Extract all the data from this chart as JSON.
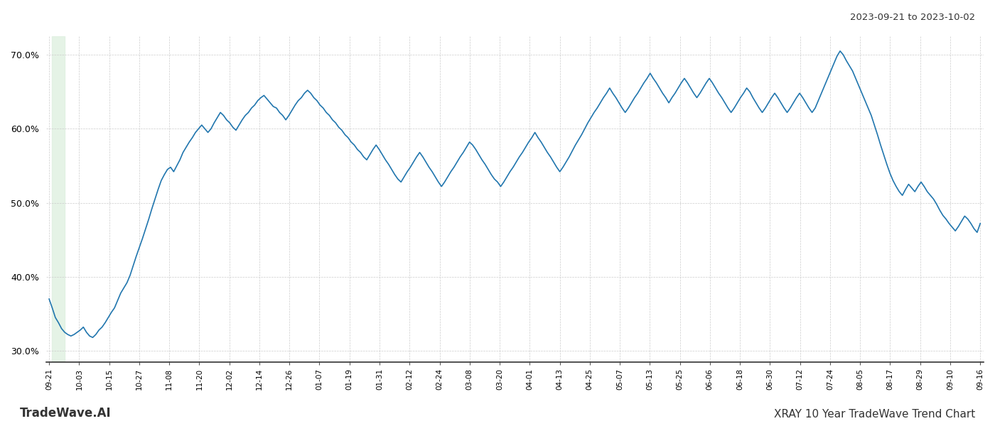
{
  "title_top_right": "2023-09-21 to 2023-10-02",
  "title_bottom_left": "TradeWave.AI",
  "title_bottom_right": "XRAY 10 Year TradeWave Trend Chart",
  "line_color": "#2176ae",
  "line_width": 1.2,
  "background_color": "#ffffff",
  "grid_color": "#cccccc",
  "highlight_color": "#dff0e0",
  "ylim": [
    0.285,
    0.725
  ],
  "yticks": [
    0.3,
    0.4,
    0.5,
    0.6,
    0.7
  ],
  "xlabels": [
    "09-21",
    "10-03",
    "10-15",
    "10-27",
    "11-08",
    "11-20",
    "12-02",
    "12-14",
    "12-26",
    "01-07",
    "01-19",
    "01-31",
    "02-12",
    "02-24",
    "03-08",
    "03-20",
    "04-01",
    "04-13",
    "04-25",
    "05-07",
    "05-13",
    "05-25",
    "06-06",
    "06-18",
    "06-30",
    "07-12",
    "07-24",
    "08-05",
    "08-17",
    "08-29",
    "09-10",
    "09-16"
  ],
  "values": [
    0.37,
    0.358,
    0.345,
    0.338,
    0.33,
    0.325,
    0.322,
    0.32,
    0.322,
    0.325,
    0.328,
    0.332,
    0.325,
    0.32,
    0.318,
    0.322,
    0.328,
    0.332,
    0.338,
    0.345,
    0.352,
    0.358,
    0.368,
    0.378,
    0.385,
    0.392,
    0.402,
    0.415,
    0.428,
    0.44,
    0.452,
    0.465,
    0.478,
    0.492,
    0.505,
    0.518,
    0.53,
    0.538,
    0.545,
    0.548,
    0.542,
    0.55,
    0.558,
    0.568,
    0.575,
    0.582,
    0.588,
    0.595,
    0.6,
    0.605,
    0.6,
    0.595,
    0.6,
    0.608,
    0.615,
    0.622,
    0.618,
    0.612,
    0.608,
    0.602,
    0.598,
    0.605,
    0.612,
    0.618,
    0.622,
    0.628,
    0.632,
    0.638,
    0.642,
    0.645,
    0.64,
    0.635,
    0.63,
    0.628,
    0.622,
    0.618,
    0.612,
    0.618,
    0.625,
    0.632,
    0.638,
    0.642,
    0.648,
    0.652,
    0.648,
    0.642,
    0.638,
    0.632,
    0.628,
    0.622,
    0.618,
    0.612,
    0.608,
    0.602,
    0.598,
    0.592,
    0.588,
    0.582,
    0.578,
    0.572,
    0.568,
    0.562,
    0.558,
    0.565,
    0.572,
    0.578,
    0.572,
    0.565,
    0.558,
    0.552,
    0.545,
    0.538,
    0.532,
    0.528,
    0.535,
    0.542,
    0.548,
    0.555,
    0.562,
    0.568,
    0.562,
    0.555,
    0.548,
    0.542,
    0.535,
    0.528,
    0.522,
    0.528,
    0.535,
    0.542,
    0.548,
    0.555,
    0.562,
    0.568,
    0.575,
    0.582,
    0.578,
    0.572,
    0.565,
    0.558,
    0.552,
    0.545,
    0.538,
    0.532,
    0.528,
    0.522,
    0.528,
    0.535,
    0.542,
    0.548,
    0.555,
    0.562,
    0.568,
    0.575,
    0.582,
    0.588,
    0.595,
    0.588,
    0.582,
    0.575,
    0.568,
    0.562,
    0.555,
    0.548,
    0.542,
    0.548,
    0.555,
    0.562,
    0.57,
    0.578,
    0.585,
    0.592,
    0.6,
    0.608,
    0.615,
    0.622,
    0.628,
    0.635,
    0.642,
    0.648,
    0.655,
    0.648,
    0.642,
    0.635,
    0.628,
    0.622,
    0.628,
    0.635,
    0.642,
    0.648,
    0.655,
    0.662,
    0.668,
    0.675,
    0.668,
    0.662,
    0.655,
    0.648,
    0.642,
    0.635,
    0.642,
    0.648,
    0.655,
    0.662,
    0.668,
    0.662,
    0.655,
    0.648,
    0.642,
    0.648,
    0.655,
    0.662,
    0.668,
    0.662,
    0.655,
    0.648,
    0.642,
    0.635,
    0.628,
    0.622,
    0.628,
    0.635,
    0.642,
    0.648,
    0.655,
    0.65,
    0.642,
    0.635,
    0.628,
    0.622,
    0.628,
    0.635,
    0.642,
    0.648,
    0.642,
    0.635,
    0.628,
    0.622,
    0.628,
    0.635,
    0.642,
    0.648,
    0.642,
    0.635,
    0.628,
    0.622,
    0.628,
    0.638,
    0.648,
    0.658,
    0.668,
    0.678,
    0.688,
    0.698,
    0.705,
    0.7,
    0.692,
    0.685,
    0.678,
    0.668,
    0.658,
    0.648,
    0.638,
    0.628,
    0.618,
    0.605,
    0.592,
    0.578,
    0.565,
    0.552,
    0.54,
    0.53,
    0.522,
    0.515,
    0.51,
    0.518,
    0.525,
    0.52,
    0.515,
    0.522,
    0.528,
    0.522,
    0.515,
    0.51,
    0.505,
    0.498,
    0.49,
    0.483,
    0.478,
    0.472,
    0.467,
    0.462,
    0.468,
    0.475,
    0.482,
    0.478,
    0.472,
    0.465,
    0.46,
    0.472
  ]
}
